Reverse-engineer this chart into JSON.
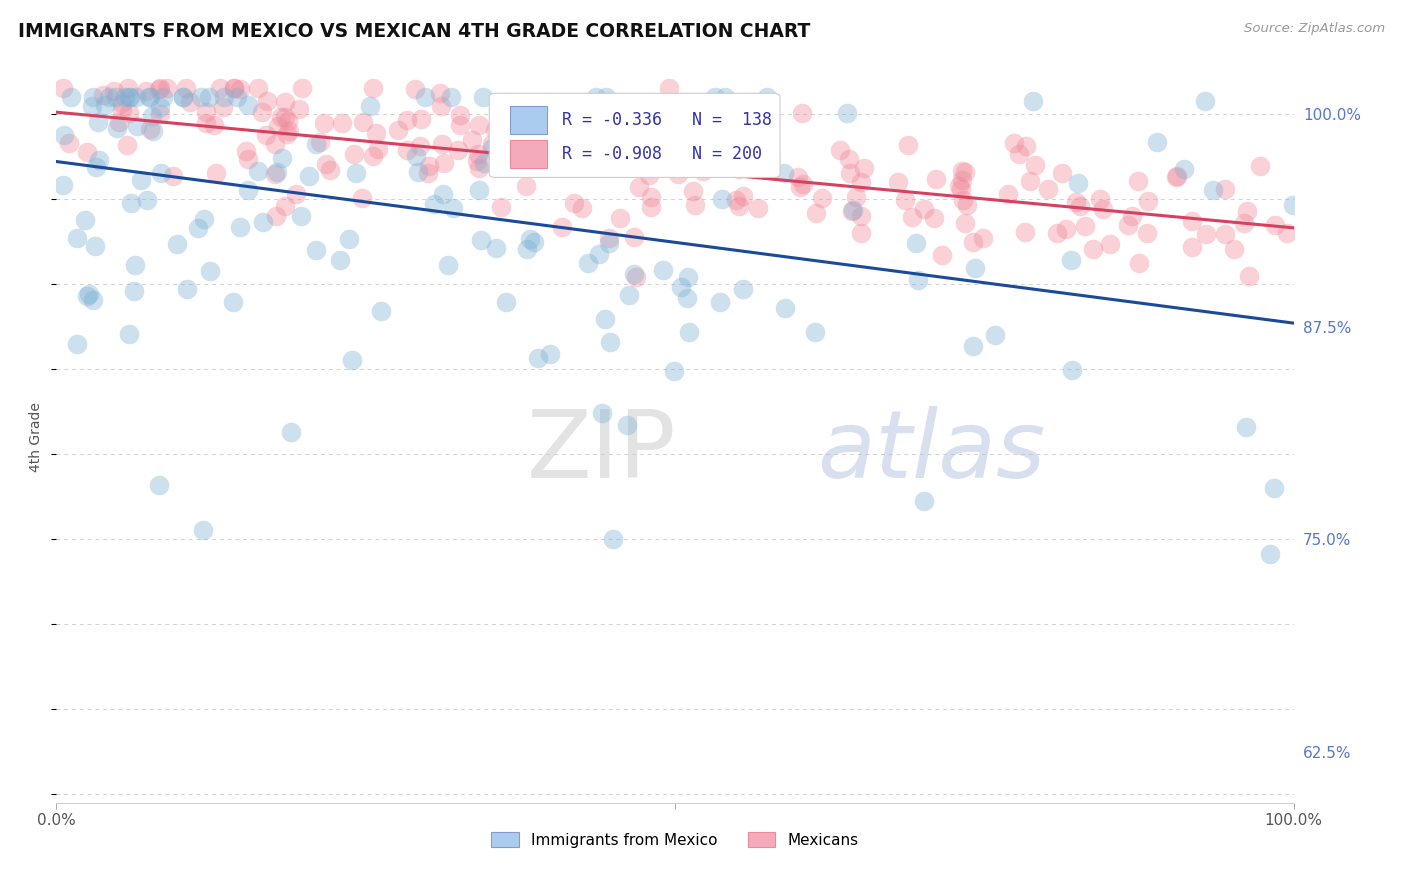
{
  "title": "IMMIGRANTS FROM MEXICO VS MEXICAN 4TH GRADE CORRELATION CHART",
  "source_text": "Source: ZipAtlas.com",
  "ylabel": "4th Grade",
  "y_tick_labels": [
    "62.5%",
    "75.0%",
    "87.5%",
    "100.0%"
  ],
  "y_tick_values": [
    0.625,
    0.75,
    0.875,
    1.0
  ],
  "x_range": [
    0.0,
    1.0
  ],
  "y_range": [
    0.595,
    1.025
  ],
  "blue_color": "#7bafd4",
  "pink_color": "#f08898",
  "blue_line_color": "#1a4a99",
  "pink_line_color": "#d84060",
  "blue_R": -0.336,
  "blue_N": 138,
  "pink_R": -0.908,
  "pink_N": 200,
  "blue_intercept": 0.972,
  "blue_slope": -0.095,
  "pink_intercept": 1.001,
  "pink_slope": -0.068,
  "watermark_zip": "ZIP",
  "watermark_atlas": "atlas",
  "background_color": "#ffffff",
  "grid_color": "#cccccc",
  "legend_R1": "R = -0.336",
  "legend_N1": "N =  138",
  "legend_R2": "R = -0.908",
  "legend_N2": "N = 200",
  "legend_color1": "#aaccee",
  "legend_color2": "#f5aabb",
  "legend_text_color": "#3333aa",
  "bottom_legend_color1": "#aaccee",
  "bottom_legend_color2": "#f5aabb",
  "bottom_label1": "Immigrants from Mexico",
  "bottom_label2": "Mexicans"
}
